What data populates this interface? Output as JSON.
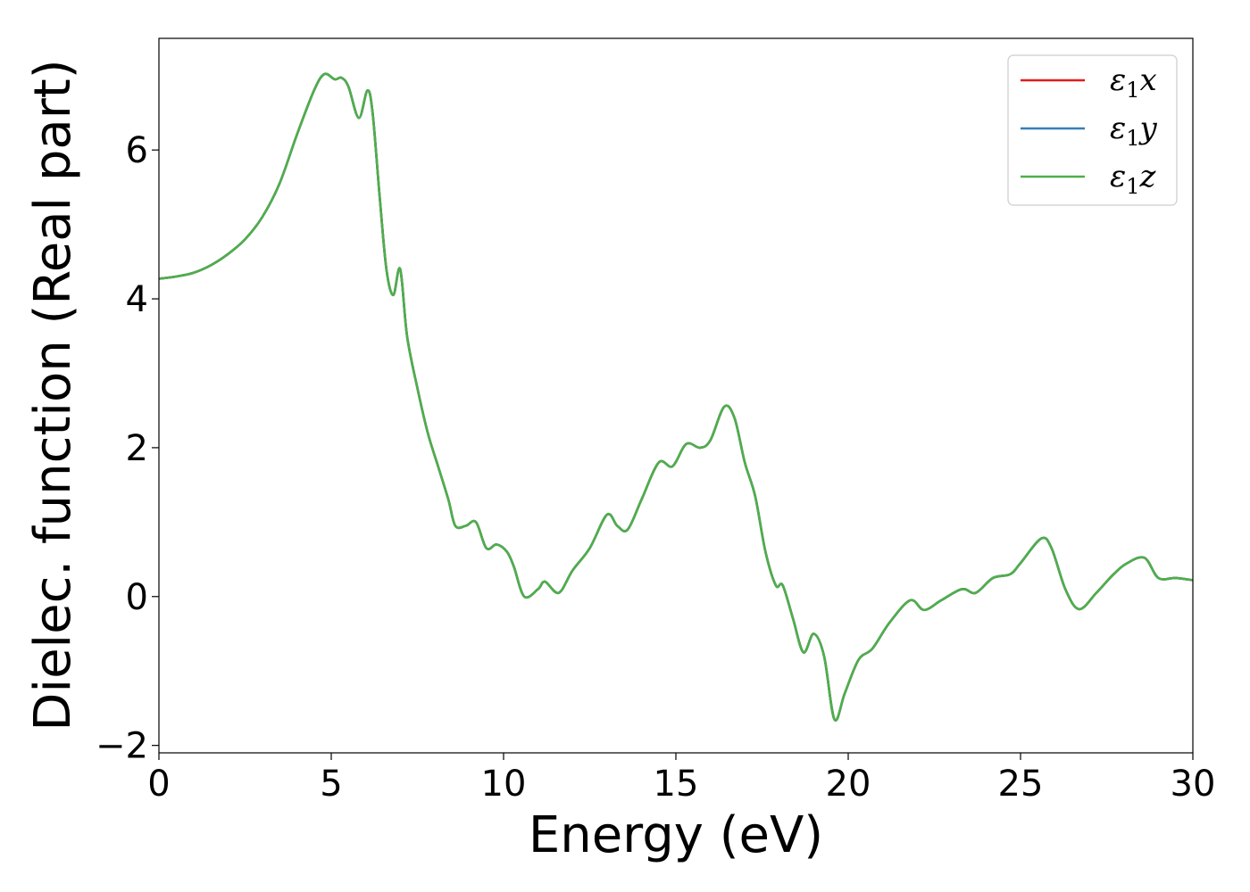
{
  "chart_data": {
    "type": "line",
    "xlabel": "Energy (eV)",
    "ylabel": "Dielec. function (Real part)",
    "xlim": [
      0,
      30
    ],
    "ylim": [
      -2.1,
      7.5
    ],
    "xticks": [
      0,
      5,
      10,
      15,
      20,
      25,
      30
    ],
    "xtick_labels": [
      "0",
      "5",
      "10",
      "15",
      "20",
      "25",
      "30"
    ],
    "yticks": [
      -2,
      0,
      2,
      4,
      6
    ],
    "ytick_labels": [
      "−2",
      "0",
      "2",
      "4",
      "6"
    ],
    "grid": false,
    "legend_position": "top-right",
    "x": [
      0,
      0.5,
      1,
      1.5,
      2,
      2.5,
      3,
      3.5,
      4,
      4.5,
      4.8,
      5.1,
      5.3,
      5.5,
      5.8,
      6.05,
      6.2,
      6.4,
      6.6,
      6.8,
      7.0,
      7.2,
      7.5,
      7.8,
      8.1,
      8.4,
      8.6,
      8.9,
      9.2,
      9.5,
      9.8,
      10.1,
      10.3,
      10.6,
      11.0,
      11.2,
      11.6,
      12.0,
      12.5,
      13.0,
      13.3,
      13.6,
      14.0,
      14.5,
      14.9,
      15.3,
      15.7,
      16.0,
      16.4,
      16.7,
      17.0,
      17.3,
      17.6,
      17.9,
      18.1,
      18.4,
      18.7,
      19.0,
      19.3,
      19.6,
      19.9,
      20.3,
      20.7,
      21.2,
      21.8,
      22.2,
      22.7,
      23.3,
      23.7,
      24.2,
      24.7,
      25.0,
      25.6,
      25.9,
      26.3,
      26.7,
      27.2,
      27.7,
      28.1,
      28.6,
      29.0,
      29.5,
      30.0
    ],
    "series": [
      {
        "name": "x",
        "color": "#e41a1c",
        "values": [
          4.27,
          4.3,
          4.35,
          4.45,
          4.6,
          4.8,
          5.1,
          5.55,
          6.2,
          6.8,
          7.02,
          6.95,
          6.97,
          6.85,
          6.43,
          6.8,
          6.5,
          5.4,
          4.4,
          4.05,
          4.4,
          3.5,
          2.8,
          2.2,
          1.75,
          1.3,
          0.95,
          0.95,
          1.0,
          0.65,
          0.7,
          0.6,
          0.4,
          0.0,
          0.1,
          0.2,
          0.05,
          0.35,
          0.65,
          1.1,
          0.95,
          0.9,
          1.3,
          1.8,
          1.75,
          2.05,
          2.0,
          2.1,
          2.55,
          2.4,
          1.8,
          1.35,
          0.6,
          0.15,
          0.15,
          -0.3,
          -0.75,
          -0.5,
          -0.8,
          -1.65,
          -1.3,
          -0.85,
          -0.7,
          -0.35,
          -0.05,
          -0.18,
          -0.05,
          0.1,
          0.05,
          0.25,
          0.3,
          0.45,
          0.78,
          0.65,
          0.1,
          -0.17,
          0.05,
          0.3,
          0.45,
          0.52,
          0.25,
          0.25,
          0.22
        ]
      },
      {
        "name": "y",
        "color": "#377eb8",
        "values": [
          4.27,
          4.3,
          4.35,
          4.45,
          4.6,
          4.8,
          5.1,
          5.55,
          6.2,
          6.8,
          7.02,
          6.95,
          6.97,
          6.85,
          6.43,
          6.8,
          6.5,
          5.4,
          4.4,
          4.05,
          4.4,
          3.5,
          2.8,
          2.2,
          1.75,
          1.3,
          0.95,
          0.95,
          1.0,
          0.65,
          0.7,
          0.6,
          0.4,
          0.0,
          0.1,
          0.2,
          0.05,
          0.35,
          0.65,
          1.1,
          0.95,
          0.9,
          1.3,
          1.8,
          1.75,
          2.05,
          2.0,
          2.1,
          2.55,
          2.4,
          1.8,
          1.35,
          0.6,
          0.15,
          0.15,
          -0.3,
          -0.75,
          -0.5,
          -0.8,
          -1.65,
          -1.3,
          -0.85,
          -0.7,
          -0.35,
          -0.05,
          -0.18,
          -0.05,
          0.1,
          0.05,
          0.25,
          0.3,
          0.45,
          0.78,
          0.65,
          0.1,
          -0.17,
          0.05,
          0.3,
          0.45,
          0.52,
          0.25,
          0.25,
          0.22
        ]
      },
      {
        "name": "z",
        "color": "#4daf4a",
        "values": [
          4.27,
          4.3,
          4.35,
          4.45,
          4.6,
          4.8,
          5.1,
          5.55,
          6.2,
          6.8,
          7.02,
          6.95,
          6.97,
          6.85,
          6.43,
          6.8,
          6.5,
          5.4,
          4.4,
          4.05,
          4.4,
          3.5,
          2.8,
          2.2,
          1.75,
          1.3,
          0.95,
          0.95,
          1.0,
          0.65,
          0.7,
          0.6,
          0.4,
          0.0,
          0.1,
          0.2,
          0.05,
          0.35,
          0.65,
          1.1,
          0.95,
          0.9,
          1.3,
          1.8,
          1.75,
          2.05,
          2.0,
          2.1,
          2.55,
          2.4,
          1.8,
          1.35,
          0.6,
          0.15,
          0.15,
          -0.3,
          -0.75,
          -0.5,
          -0.8,
          -1.65,
          -1.3,
          -0.85,
          -0.7,
          -0.35,
          -0.05,
          -0.18,
          -0.05,
          0.1,
          0.05,
          0.25,
          0.3,
          0.45,
          0.78,
          0.65,
          0.1,
          -0.17,
          0.05,
          0.3,
          0.45,
          0.52,
          0.25,
          0.25,
          0.22
        ]
      }
    ],
    "legend": [
      {
        "symbol": "ε",
        "sub": "1",
        "var": "x"
      },
      {
        "symbol": "ε",
        "sub": "1",
        "var": "y"
      },
      {
        "symbol": "ε",
        "sub": "1",
        "var": "z"
      }
    ]
  }
}
